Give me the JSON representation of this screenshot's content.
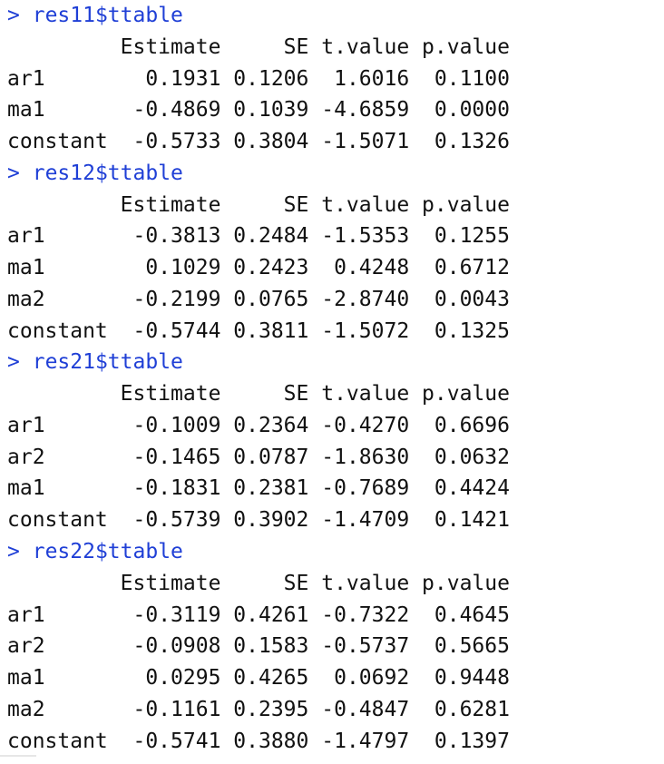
{
  "prompt": ">",
  "blocks": [
    {
      "command": "res11$ttable",
      "header": [
        "Estimate",
        "SE",
        "t.value",
        "p.value"
      ],
      "rows": [
        {
          "name": "ar1",
          "values": [
            "0.1931",
            "0.1206",
            "1.6016",
            "0.1100"
          ]
        },
        {
          "name": "ma1",
          "values": [
            "-0.4869",
            "0.1039",
            "-4.6859",
            "0.0000"
          ]
        },
        {
          "name": "constant",
          "values": [
            "-0.5733",
            "0.3804",
            "-1.5071",
            "0.1326"
          ]
        }
      ]
    },
    {
      "command": "res12$ttable",
      "header": [
        "Estimate",
        "SE",
        "t.value",
        "p.value"
      ],
      "rows": [
        {
          "name": "ar1",
          "values": [
            "-0.3813",
            "0.2484",
            "-1.5353",
            "0.1255"
          ]
        },
        {
          "name": "ma1",
          "values": [
            "0.1029",
            "0.2423",
            "0.4248",
            "0.6712"
          ]
        },
        {
          "name": "ma2",
          "values": [
            "-0.2199",
            "0.0765",
            "-2.8740",
            "0.0043"
          ]
        },
        {
          "name": "constant",
          "values": [
            "-0.5744",
            "0.3811",
            "-1.5072",
            "0.1325"
          ]
        }
      ]
    },
    {
      "command": "res21$ttable",
      "header": [
        "Estimate",
        "SE",
        "t.value",
        "p.value"
      ],
      "rows": [
        {
          "name": "ar1",
          "values": [
            "-0.1009",
            "0.2364",
            "-0.4270",
            "0.6696"
          ]
        },
        {
          "name": "ar2",
          "values": [
            "-0.1465",
            "0.0787",
            "-1.8630",
            "0.0632"
          ]
        },
        {
          "name": "ma1",
          "values": [
            "-0.1831",
            "0.2381",
            "-0.7689",
            "0.4424"
          ]
        },
        {
          "name": "constant",
          "values": [
            "-0.5739",
            "0.3902",
            "-1.4709",
            "0.1421"
          ]
        }
      ]
    },
    {
      "command": "res22$ttable",
      "header": [
        "Estimate",
        "SE",
        "t.value",
        "p.value"
      ],
      "rows": [
        {
          "name": "ar1",
          "values": [
            "-0.3119",
            "0.4261",
            "-0.7322",
            "0.4645"
          ]
        },
        {
          "name": "ar2",
          "values": [
            "-0.0908",
            "0.1583",
            "-0.5737",
            "0.5665"
          ]
        },
        {
          "name": "ma1",
          "values": [
            "0.0295",
            "0.4265",
            "0.0692",
            "0.9448"
          ]
        },
        {
          "name": "ma2",
          "values": [
            "-0.1161",
            "0.2395",
            "-0.4847",
            "0.6281"
          ]
        },
        {
          "name": "constant",
          "values": [
            "-0.5741",
            "0.3880",
            "-1.4797",
            "0.1397"
          ]
        }
      ]
    }
  ],
  "colors": {
    "command": "#1f3fd6",
    "output": "#111111",
    "background": "#ffffff"
  }
}
